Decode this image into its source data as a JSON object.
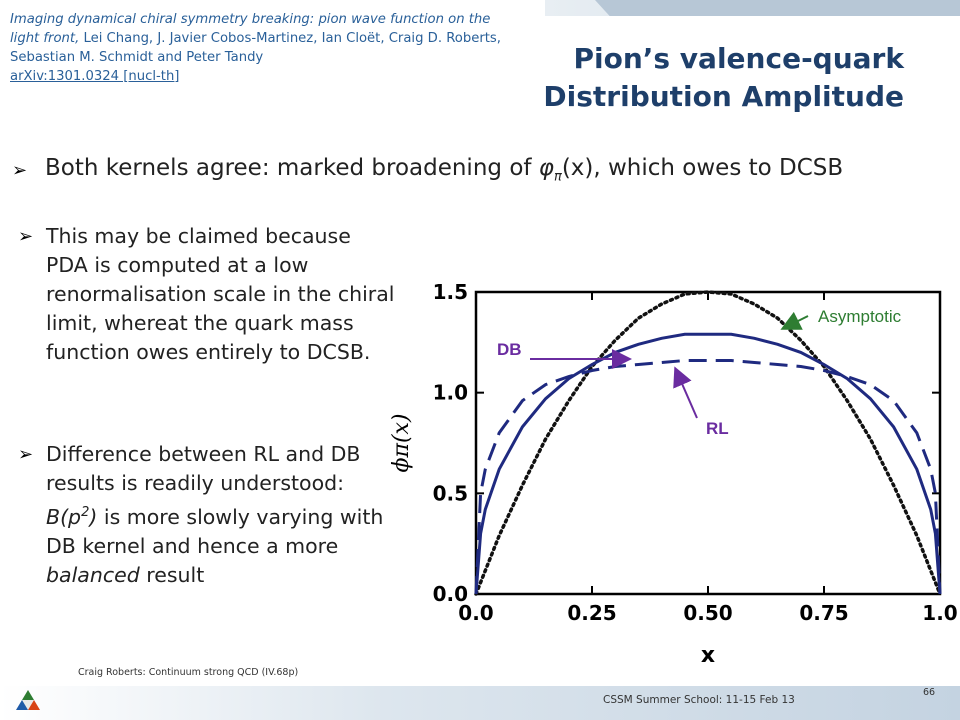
{
  "citation": {
    "title_italic": "Imaging dynamical chiral symmetry breaking: pion wave function on the light front,",
    "authors": " Lei Chang, J. Javier Cobos-Martinez, Ian Cloët, Craig D. Roberts, Sebastian M. Schmidt and Peter Tandy",
    "link": "arXiv:1301.0324 [nucl-th]"
  },
  "title": {
    "line1": "Pion’s valence-quark",
    "line2": "Distribution Amplitude"
  },
  "bullets": {
    "b1_pre": "Both kernels agree: marked broadening of ",
    "b1_phi": "φ",
    "b1_sub": "π",
    "b1_post": "(x), which owes to DCSB",
    "b2": "This may be claimed because PDA is computed at a low renormalisation scale in the chiral limit, whereat the quark mass function owes entirely to DCSB.",
    "b3_pre": "Difference between RL and DB results is readily understood: ",
    "b3_B": "B(p",
    "b3_sup": "2",
    "b3_close": ")",
    "b3_mid": " is more slowly varying with DB kernel and hence a more ",
    "b3_balanced": "balanced",
    "b3_post": " result"
  },
  "chart_data": {
    "type": "line",
    "xlabel": "x",
    "ylabel": "ϕπ(x)",
    "xlim": [
      0,
      1
    ],
    "ylim": [
      0,
      1.5
    ],
    "x_ticks": [
      "0.0",
      "0.25",
      "0.50",
      "0.75",
      "1.0"
    ],
    "y_ticks": [
      "0.0",
      "0.5",
      "1.0",
      "1.5"
    ],
    "series": [
      {
        "name": "Asymptotic",
        "style": "dotted",
        "color": "#111111",
        "x": [
          0,
          0.05,
          0.1,
          0.15,
          0.2,
          0.25,
          0.3,
          0.35,
          0.4,
          0.45,
          0.5,
          0.55,
          0.6,
          0.65,
          0.7,
          0.75,
          0.8,
          0.85,
          0.9,
          0.95,
          1
        ],
        "y": [
          0,
          0.29,
          0.54,
          0.77,
          0.96,
          1.13,
          1.26,
          1.37,
          1.44,
          1.49,
          1.5,
          1.49,
          1.44,
          1.37,
          1.26,
          1.13,
          0.96,
          0.77,
          0.54,
          0.29,
          0
        ]
      },
      {
        "name": "DB",
        "style": "solid",
        "color": "#1f2a80",
        "x": [
          0,
          0.01,
          0.02,
          0.05,
          0.1,
          0.15,
          0.2,
          0.25,
          0.3,
          0.35,
          0.4,
          0.45,
          0.5,
          0.55,
          0.6,
          0.65,
          0.7,
          0.75,
          0.8,
          0.85,
          0.9,
          0.95,
          0.98,
          0.99,
          1
        ],
        "y": [
          0,
          0.3,
          0.42,
          0.62,
          0.83,
          0.97,
          1.07,
          1.14,
          1.2,
          1.24,
          1.27,
          1.29,
          1.29,
          1.29,
          1.27,
          1.24,
          1.2,
          1.14,
          1.07,
          0.97,
          0.83,
          0.62,
          0.42,
          0.3,
          0
        ]
      },
      {
        "name": "RL",
        "style": "dashed",
        "color": "#1f2a80",
        "x": [
          0,
          0.01,
          0.02,
          0.05,
          0.1,
          0.15,
          0.2,
          0.25,
          0.3,
          0.35,
          0.4,
          0.45,
          0.5,
          0.55,
          0.6,
          0.65,
          0.7,
          0.75,
          0.8,
          0.85,
          0.9,
          0.95,
          0.98,
          0.99,
          1
        ],
        "y": [
          0,
          0.5,
          0.62,
          0.8,
          0.96,
          1.04,
          1.08,
          1.11,
          1.13,
          1.14,
          1.15,
          1.16,
          1.16,
          1.16,
          1.15,
          1.14,
          1.13,
          1.11,
          1.08,
          1.04,
          0.96,
          0.8,
          0.62,
          0.5,
          0
        ]
      }
    ],
    "annotations": [
      {
        "text": "Asymptotic",
        "color": "#2e7d32"
      },
      {
        "text": "DB",
        "color": "#6a2ca0"
      },
      {
        "text": "RL",
        "color": "#6a2ca0"
      }
    ]
  },
  "footer": {
    "note": "Craig Roberts: Continuum strong QCD (IV.68p)",
    "school": "CSSM Summer School: 11-15 Feb 13",
    "page": "66"
  },
  "colors": {
    "title": "#1e3f6a",
    "citation": "#2a6099",
    "curve": "#1f2a80"
  }
}
